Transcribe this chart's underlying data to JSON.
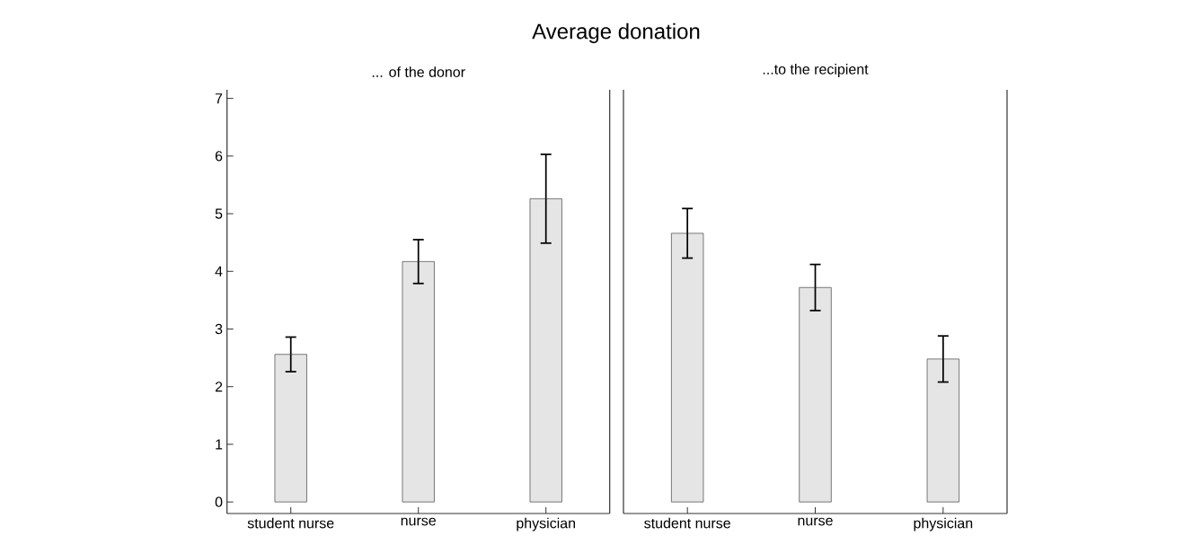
{
  "chart_data": [
    {
      "type": "bar",
      "title": "Average donation",
      "subtitle": "... of the donor",
      "categories": [
        "student nurse",
        "nurse",
        "physician"
      ],
      "values": [
        2.56,
        4.17,
        5.26
      ],
      "errors": [
        0.3,
        0.38,
        0.77
      ],
      "color": "#e5e5e5",
      "ylim": [
        -0.2,
        7.15
      ],
      "yticks": [
        0,
        1,
        2,
        3,
        4,
        5,
        6,
        7
      ]
    },
    {
      "type": "bar",
      "subtitle": "...to the recipient",
      "categories": [
        "student nurse",
        "nurse",
        "physician"
      ],
      "values": [
        4.66,
        3.72,
        2.48
      ],
      "errors": [
        0.43,
        0.4,
        0.4
      ],
      "color": "#e5e5e5",
      "ylim": [
        -0.2,
        7.15
      ],
      "tick_labels": "x"
    }
  ]
}
